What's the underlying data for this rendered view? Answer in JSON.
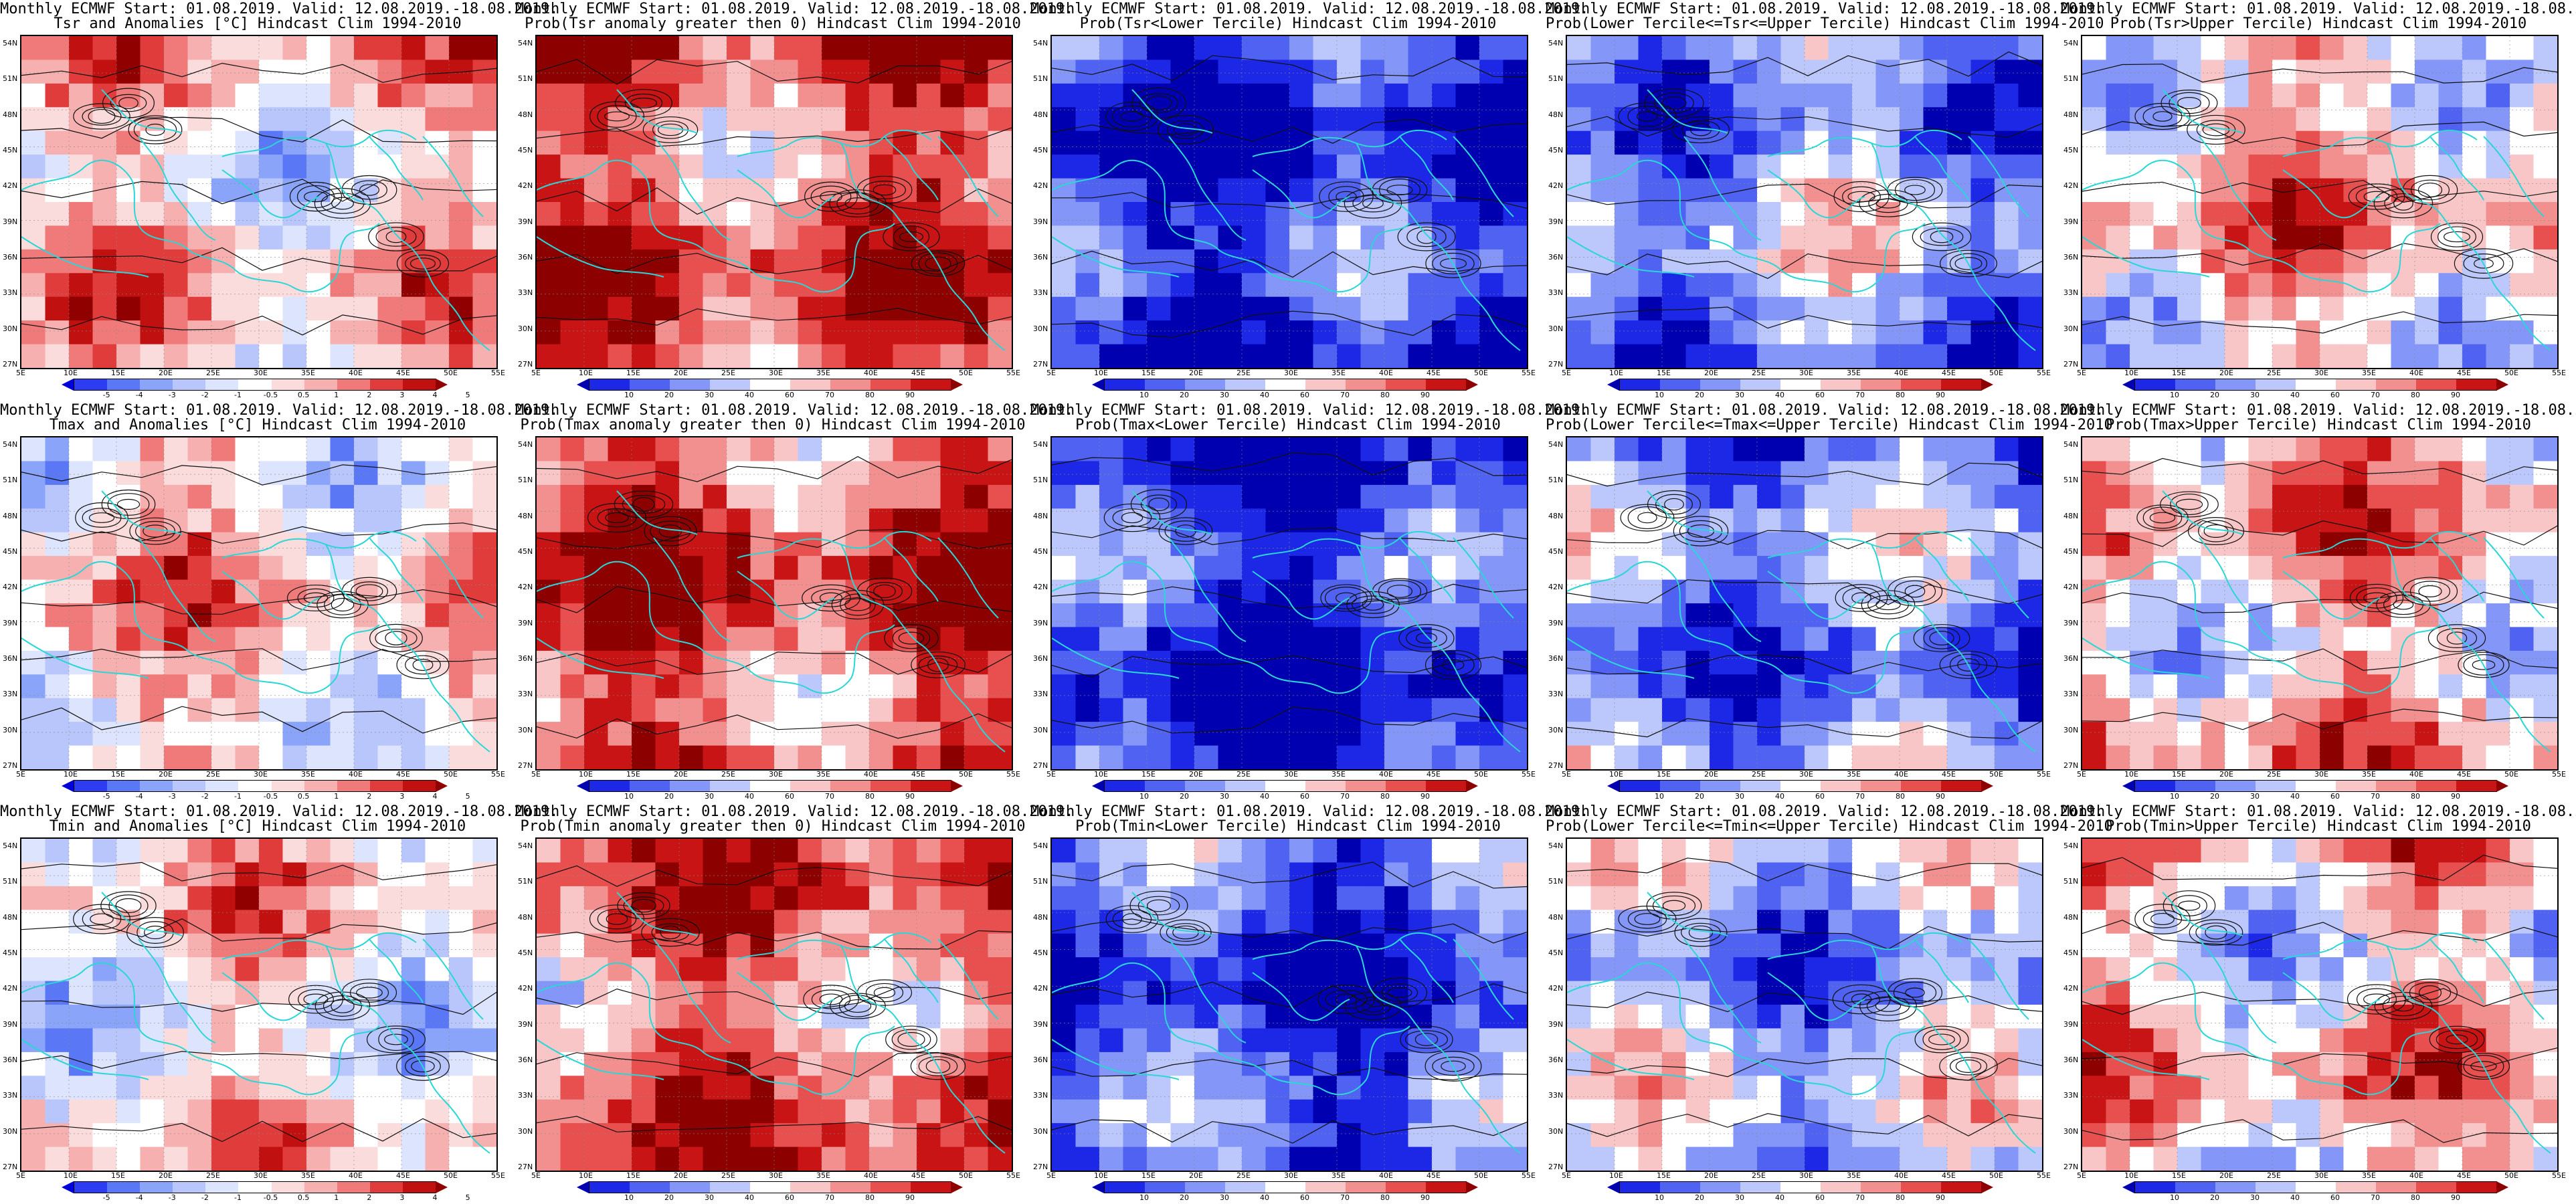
{
  "header_prefix": "Monthly ECMWF Start: 01.08.2019. Valid: 12.08.2019.-18.08.2019.",
  "latitude_labels": [
    "54N",
    "51N",
    "48N",
    "45N",
    "42N",
    "39N",
    "36N",
    "33N",
    "30N",
    "27N"
  ],
  "longitude_labels": [
    "5E",
    "10E",
    "15E",
    "20E",
    "25E",
    "30E",
    "35E",
    "40E",
    "45E",
    "50E",
    "55E"
  ],
  "colors": {
    "coast": "#2ad6d6",
    "contour": "#111111",
    "anomaly_scale": [
      "#0000d8",
      "#2d3cf0",
      "#5a78f5",
      "#8aa4fa",
      "#b8c6fc",
      "#dde4fd",
      "#ffffff",
      "#fbdcdc",
      "#f6b0b0",
      "#f07a7a",
      "#e03c3c",
      "#c01010",
      "#900000"
    ],
    "prob_scale": [
      "#0000b0",
      "#1c28e6",
      "#4f62f2",
      "#8496f7",
      "#bcc8fb",
      "#ffffff",
      "#f8c6c6",
      "#f29090",
      "#e85050",
      "#c81414",
      "#8c0000"
    ]
  },
  "anomaly_ticks": [
    "-5",
    "-4",
    "-3",
    "-2",
    "-1",
    "-0.5",
    "0.5",
    "1",
    "2",
    "3",
    "4",
    "5"
  ],
  "prob_ticks": [
    "10",
    "20",
    "30",
    "40",
    "60",
    "70",
    "80",
    "90"
  ],
  "panels": [
    {
      "title": "Tsr and Anomalies [°C] Hindcast Clim 1994-2010",
      "type": "anomaly",
      "bias": 0.15
    },
    {
      "title": "Prob(Tsr anomaly greater then 0) Hindcast Clim 1994-2010",
      "type": "prob",
      "bias": 0.55
    },
    {
      "title": "Prob(Tsr<Lower Tercile) Hindcast Clim 1994-2010",
      "type": "prob",
      "bias": -0.75
    },
    {
      "title": "Prob(Lower Tercile<=Tsr<=Upper Tercile) Hindcast Clim 1994-2010",
      "type": "prob",
      "bias": -0.35
    },
    {
      "title": "Prob(Tsr>Upper Tercile) Hindcast Clim 1994-2010",
      "type": "prob",
      "bias": 0.2
    },
    {
      "title": "Tmax and Anomalies [°C] Hindcast Clim 1994-2010",
      "type": "anomaly",
      "bias": 0.2
    },
    {
      "title": "Prob(Tmax anomaly greater then 0) Hindcast Clim 1994-2010",
      "type": "prob",
      "bias": 0.6
    },
    {
      "title": "Prob(Tmax<Lower Tercile) Hindcast Clim 1994-2010",
      "type": "prob",
      "bias": -0.8
    },
    {
      "title": "Prob(Lower Tercile<=Tmax<=Upper Tercile) Hindcast Clim 1994-2010",
      "type": "prob",
      "bias": -0.4
    },
    {
      "title": "Prob(Tmax>Upper Tercile) Hindcast Clim 1994-2010",
      "type": "prob",
      "bias": 0.25
    },
    {
      "title": "Tmin and Anomalies [°C] Hindcast Clim 1994-2010",
      "type": "anomaly",
      "bias": 0.1
    },
    {
      "title": "Prob(Tmin anomaly greater then 0) Hindcast Clim 1994-2010",
      "type": "prob",
      "bias": 0.5
    },
    {
      "title": "Prob(Tmin<Lower Tercile) Hindcast Clim 1994-2010",
      "type": "prob",
      "bias": -0.7
    },
    {
      "title": "Prob(Lower Tercile<=Tmin<=Upper Tercile) Hindcast Clim 1994-2010",
      "type": "prob",
      "bias": -0.3
    },
    {
      "title": "Prob(Tmin>Upper Tercile) Hindcast Clim 1994-2010",
      "type": "prob",
      "bias": 0.15
    }
  ]
}
